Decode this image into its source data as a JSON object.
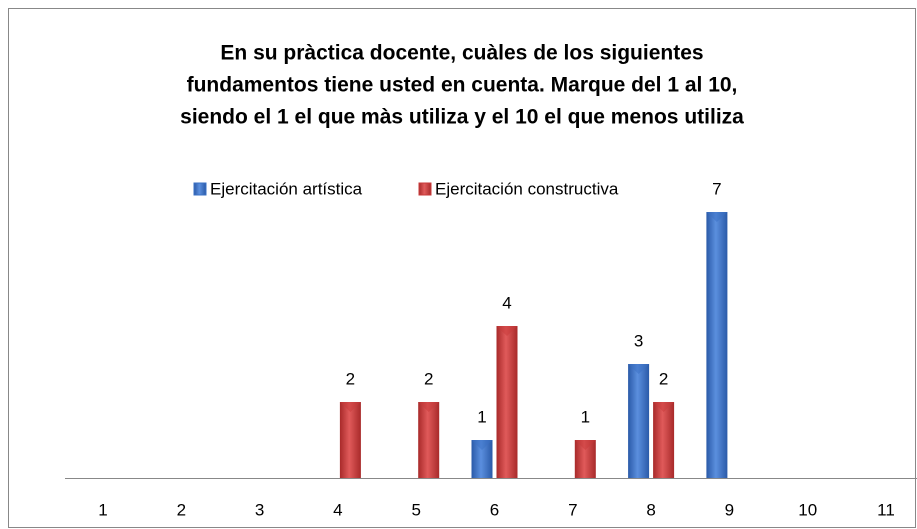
{
  "chart_data": {
    "type": "bar",
    "title": [
      "En su pràctica docente, cuàles de los siguientes",
      "fundamentos tiene usted en cuenta. Marque del 1 al 10,",
      "siendo el 1 el que màs utiliza y el 10 el que menos utiliza"
    ],
    "categories": [
      "1",
      "2",
      "3",
      "4",
      "5",
      "6",
      "7",
      "8",
      "9",
      "10",
      "11"
    ],
    "series": [
      {
        "name": "Ejercitación artística",
        "color": "#3a70c4",
        "values": [
          null,
          null,
          null,
          null,
          null,
          1,
          null,
          3,
          7,
          null,
          null
        ]
      },
      {
        "name": "Ejercitación constructiva",
        "color": "#c83a3a",
        "values": [
          null,
          null,
          null,
          2,
          2,
          4,
          1,
          2,
          null,
          null,
          null
        ]
      }
    ],
    "legend": "top"
  }
}
